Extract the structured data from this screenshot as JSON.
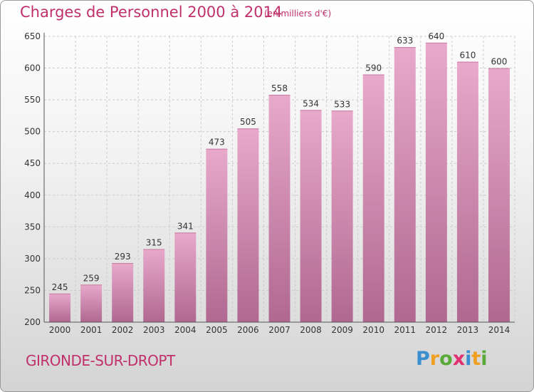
{
  "header": {
    "title": "Charges de Personnel 2000 à 2014",
    "subtitle": "(en milliers d'€)"
  },
  "footer": {
    "place": "GIRONDE-SUR-DROPT",
    "logo_text": "Proxiti"
  },
  "colors": {
    "title": "#c0306a",
    "bar_top": "#e8a9cb",
    "bar_bottom": "#b06890",
    "grid": "#cccccc"
  },
  "chart_data": {
    "type": "bar",
    "categories": [
      "2000",
      "2001",
      "2002",
      "2003",
      "2004",
      "2005",
      "2006",
      "2007",
      "2008",
      "2009",
      "2010",
      "2011",
      "2012",
      "2013",
      "2014"
    ],
    "values": [
      245,
      259,
      293,
      315,
      341,
      473,
      505,
      558,
      534,
      533,
      590,
      633,
      640,
      610,
      600
    ],
    "title": "Charges de Personnel 2000 à 2014",
    "subtitle": "(en milliers d'€)",
    "xlabel": "",
    "ylabel": "",
    "ylim": [
      200,
      650
    ],
    "yticks": [
      200,
      250,
      300,
      350,
      400,
      450,
      500,
      550,
      600,
      650
    ],
    "grid": true,
    "data_labels": true
  }
}
